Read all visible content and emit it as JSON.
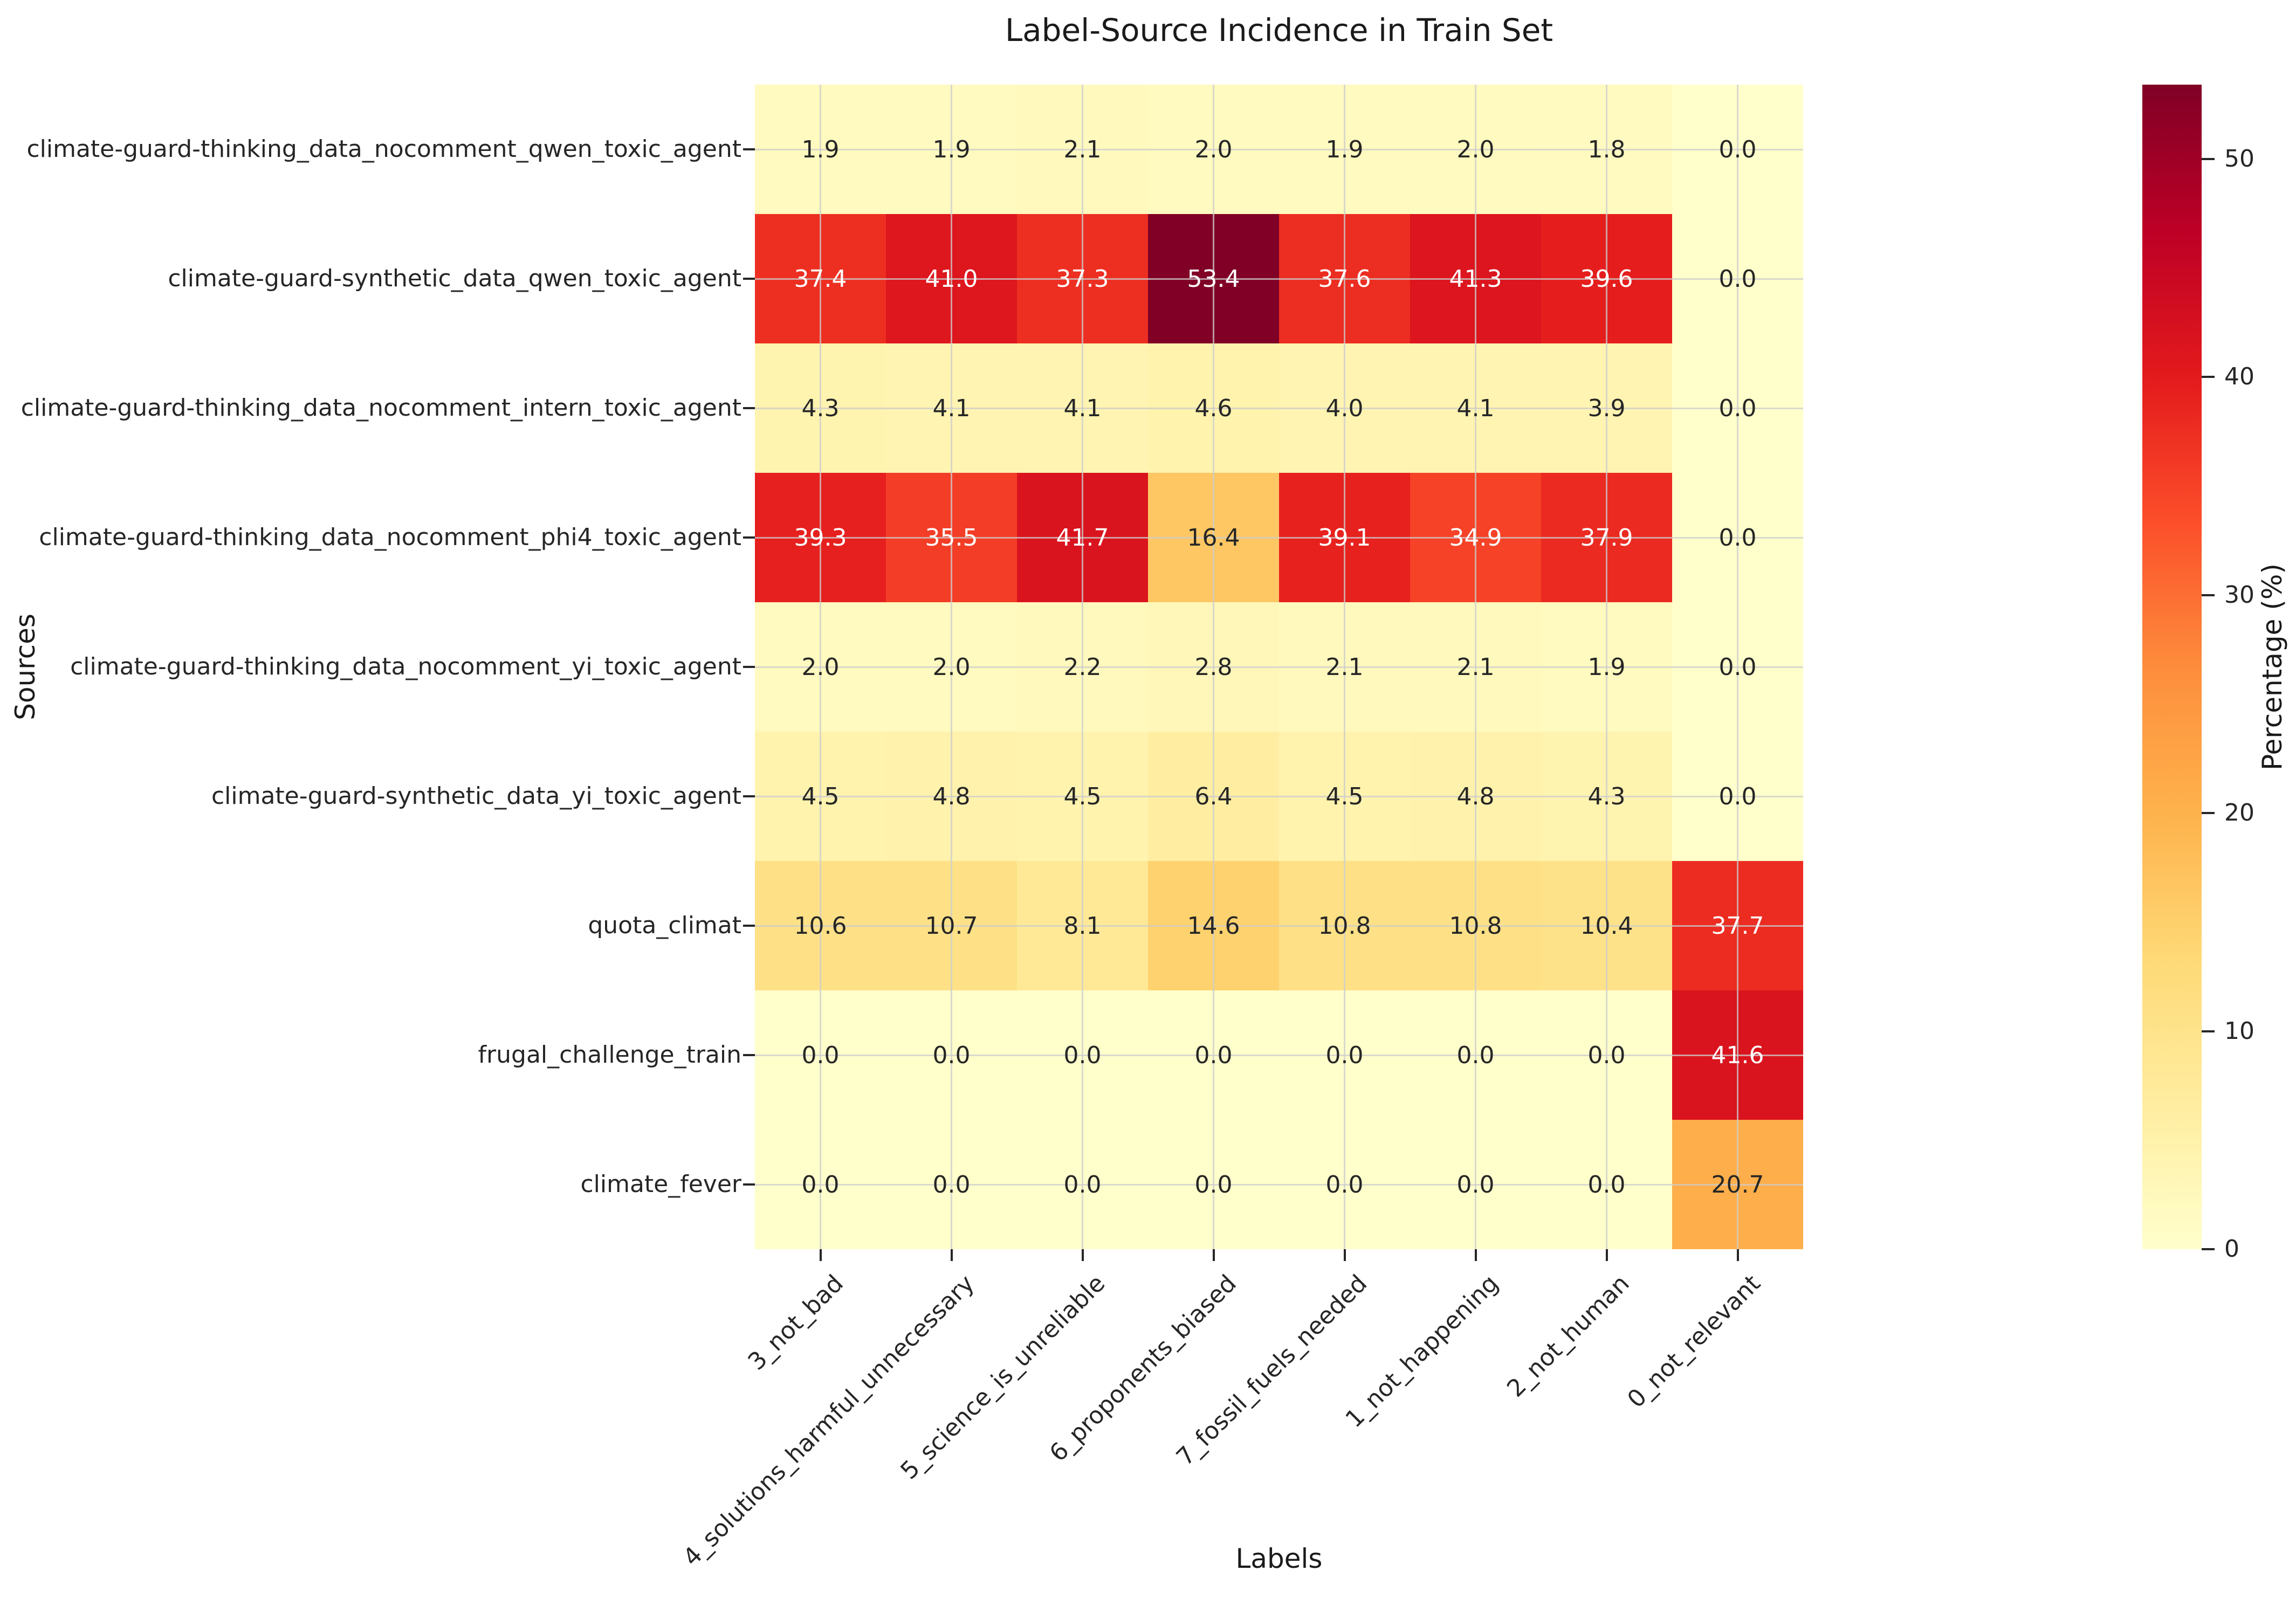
{
  "chart_data": {
    "type": "heatmap",
    "title": "Label-Source Incidence in Train Set",
    "xlabel": "Labels",
    "ylabel": "Sources",
    "colorbar_label": "Percentage (%)",
    "colorbar_ticks": [
      0,
      10,
      20,
      30,
      40,
      50
    ],
    "vmin": 0,
    "vmax": 53.4,
    "colormap": "YlOrRd",
    "colormap_stops": [
      "#ffffcc",
      "#ffeda0",
      "#fed976",
      "#feb24c",
      "#fd8d3c",
      "#fc4e2a",
      "#e31a1c",
      "#bd0026",
      "#800026"
    ],
    "grid": true,
    "annotation_format": "one_decimal",
    "categories_x": [
      "3_not_bad",
      "4_solutions_harmful_unnecessary",
      "5_science_is_unreliable",
      "6_proponents_biased",
      "7_fossil_fuels_needed",
      "1_not_happening",
      "2_not_human",
      "0_not_relevant"
    ],
    "categories_y": [
      "climate-guard-thinking_data_nocomment_qwen_toxic_agent",
      "climate-guard-synthetic_data_qwen_toxic_agent",
      "climate-guard-thinking_data_nocomment_intern_toxic_agent",
      "climate-guard-thinking_data_nocomment_phi4_toxic_agent",
      "climate-guard-thinking_data_nocomment_yi_toxic_agent",
      "climate-guard-synthetic_data_yi_toxic_agent",
      "quota_climat",
      "frugal_challenge_train",
      "climate_fever"
    ],
    "values": [
      [
        1.9,
        1.9,
        2.1,
        2.0,
        1.9,
        2.0,
        1.8,
        0.0
      ],
      [
        37.4,
        41.0,
        37.3,
        53.4,
        37.6,
        41.3,
        39.6,
        0.0
      ],
      [
        4.3,
        4.1,
        4.1,
        4.6,
        4.0,
        4.1,
        3.9,
        0.0
      ],
      [
        39.3,
        35.5,
        41.7,
        16.4,
        39.1,
        34.9,
        37.9,
        0.0
      ],
      [
        2.0,
        2.0,
        2.2,
        2.8,
        2.1,
        2.1,
        1.9,
        0.0
      ],
      [
        4.5,
        4.8,
        4.5,
        6.4,
        4.5,
        4.8,
        4.3,
        0.0
      ],
      [
        10.6,
        10.7,
        8.1,
        14.6,
        10.8,
        10.8,
        10.4,
        37.7
      ],
      [
        0.0,
        0.0,
        0.0,
        0.0,
        0.0,
        0.0,
        0.0,
        41.6
      ],
      [
        0.0,
        0.0,
        0.0,
        0.0,
        0.0,
        0.0,
        0.0,
        20.7
      ]
    ]
  }
}
